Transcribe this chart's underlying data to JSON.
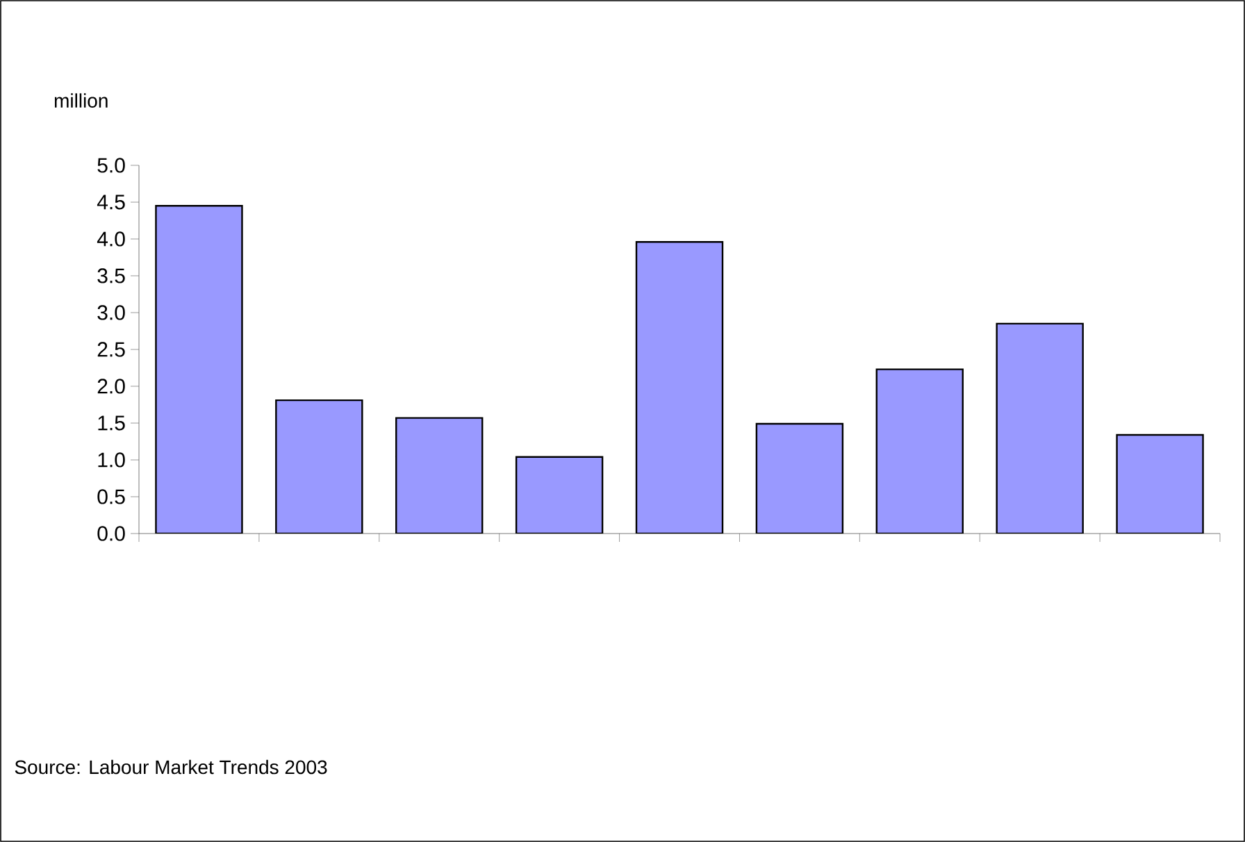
{
  "chart_data": {
    "type": "bar",
    "ylabel": "million",
    "categories": [
      null,
      null,
      null,
      null,
      null,
      null,
      null,
      null,
      null
    ],
    "values": [
      4.45,
      1.81,
      1.57,
      1.04,
      3.96,
      1.49,
      2.23,
      2.85,
      1.34
    ],
    "color": "#9999ff",
    "ylim": [
      0,
      5
    ],
    "yticks": [
      {
        "value": 0,
        "label": "0.0"
      },
      {
        "value": 0.5,
        "label": "0.5"
      },
      {
        "value": 1,
        "label": "1.0"
      },
      {
        "value": 1.5,
        "label": "1.5"
      },
      {
        "value": 2,
        "label": "2.0"
      },
      {
        "value": 2.5,
        "label": "2.5"
      },
      {
        "value": 3,
        "label": "3.0"
      },
      {
        "value": 3.5,
        "label": "3.5"
      },
      {
        "value": 4,
        "label": "4.0"
      },
      {
        "value": 4.5,
        "label": "4.5"
      },
      {
        "value": 5,
        "label": "5.0"
      }
    ],
    "grid": false,
    "annotations": [
      "Source: Labour Market Trends 2003"
    ]
  }
}
